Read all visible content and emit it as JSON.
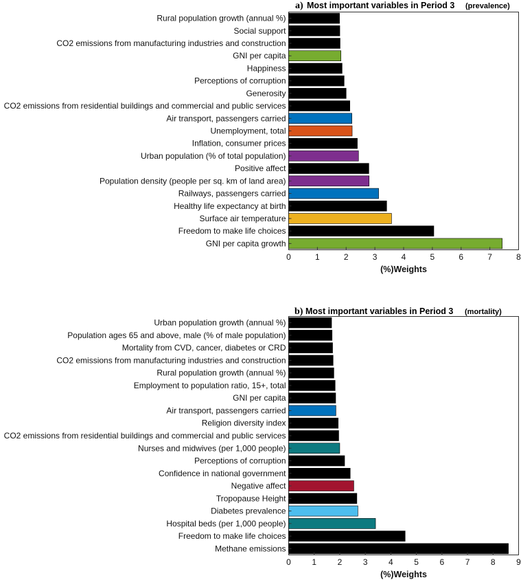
{
  "chart_data": [
    {
      "type": "bar",
      "orientation": "horizontal",
      "title_letter": "a)",
      "title_main": "Most important variables in Period 3",
      "title_qualifier": "(prevalence)",
      "xlabel": "(%)Weights",
      "ylabel": "",
      "xlim": [
        0,
        8
      ],
      "xticks": [
        "0",
        "1",
        "2",
        "3",
        "4",
        "5",
        "6",
        "7",
        "8"
      ],
      "grid": false,
      "categories": [
        "Rural population growth (annual %)",
        "Social support",
        "CO2 emissions from manufacturing industries and construction",
        "GNI per capita",
        "Happiness",
        "Perceptions of corruption",
        "Generosity",
        "CO2 emissions from residential buildings and commercial and public services",
        "Air transport, passengers carried",
        "Unemployment, total",
        "Inflation, consumer prices",
        "Urban population (% of total population)",
        "Positive affect",
        "Population density (people per sq. km of land area)",
        "Railways, passengers carried",
        "Healthy life expectancy at birth",
        "Surface air temperature",
        "Freedom to make life choices",
        "GNI per capita growth"
      ],
      "values": [
        1.77,
        1.78,
        1.79,
        1.82,
        1.86,
        1.93,
        2.0,
        2.13,
        2.2,
        2.21,
        2.39,
        2.43,
        2.79,
        2.8,
        3.13,
        3.41,
        3.58,
        5.05,
        7.43
      ],
      "colors": [
        "#000000",
        "#000000",
        "#000000",
        "#77ac30",
        "#000000",
        "#000000",
        "#000000",
        "#000000",
        "#0072bd",
        "#d95319",
        "#000000",
        "#7e2f8e",
        "#000000",
        "#7e2f8e",
        "#0072bd",
        "#000000",
        "#edb120",
        "#000000",
        "#77ac30"
      ]
    },
    {
      "type": "bar",
      "orientation": "horizontal",
      "title_letter": "b)",
      "title_main": "Most important variables in Period 3",
      "title_qualifier": "(mortality)",
      "xlabel": "(%)Weights",
      "ylabel": "",
      "xlim": [
        0,
        9
      ],
      "xticks": [
        "0",
        "1",
        "2",
        "3",
        "4",
        "5",
        "6",
        "7",
        "8",
        "9"
      ],
      "grid": false,
      "categories": [
        "Urban population growth (annual %)",
        "Population ages 65 and above, male (% of male population)",
        "Mortality from CVD, cancer, diabetes or CRD",
        "CO2 emissions from manufacturing industries and construction",
        "Rural population growth (annual %)",
        "Employment to population ratio, 15+, total",
        "GNI per capita",
        "Air transport, passengers carried",
        "Religion diversity index",
        "CO2 emissions from residential buildings and commercial and public services",
        "Nurses and midwives (per 1,000 people)",
        "Perceptions of corruption",
        "Confidence in national government",
        "Negative affect",
        "Tropopause Height",
        "Diabetes prevalence",
        "Hospital beds (per 1,000 people)",
        "Freedom to make life choices",
        "Methane emissions"
      ],
      "values": [
        1.68,
        1.7,
        1.72,
        1.74,
        1.77,
        1.82,
        1.84,
        1.85,
        1.94,
        1.96,
        2.0,
        2.19,
        2.41,
        2.55,
        2.67,
        2.71,
        3.4,
        4.56,
        8.6
      ],
      "colors": [
        "#000000",
        "#000000",
        "#000000",
        "#000000",
        "#000000",
        "#000000",
        "#000000",
        "#0072bd",
        "#000000",
        "#000000",
        "#0e7a80",
        "#000000",
        "#000000",
        "#a2142f",
        "#000000",
        "#4dbeee",
        "#0e7a80",
        "#000000",
        "#000000"
      ]
    }
  ]
}
